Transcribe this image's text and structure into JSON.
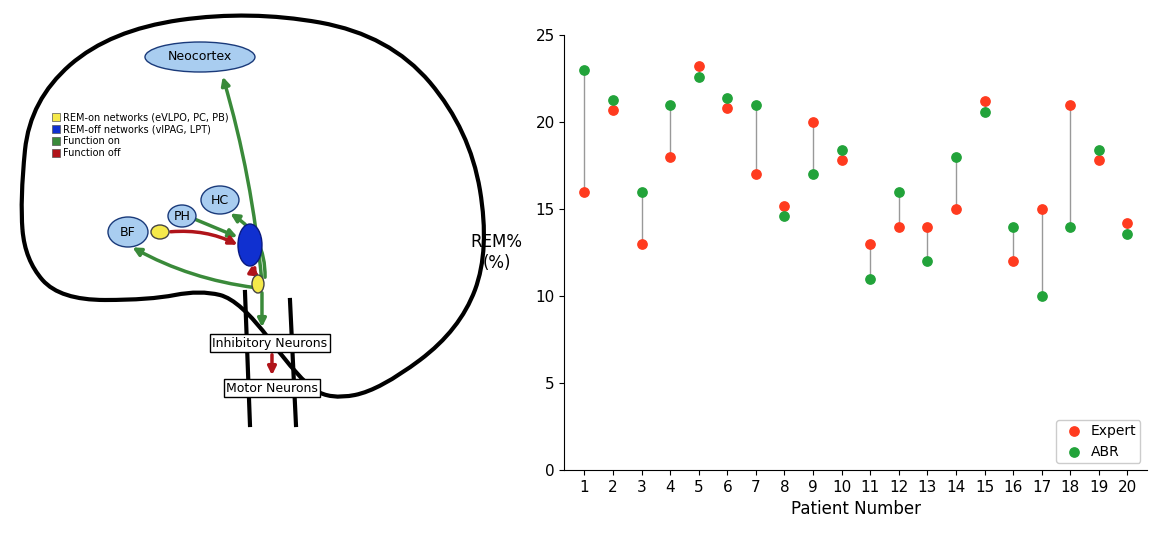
{
  "chart_data": {
    "type": "dumbbell",
    "categories": [
      "1",
      "2",
      "3",
      "4",
      "5",
      "6",
      "7",
      "8",
      "9",
      "10",
      "11",
      "12",
      "13",
      "14",
      "15",
      "16",
      "17",
      "18",
      "19",
      "20"
    ],
    "series": [
      {
        "name": "Expert",
        "color": "#ff3b1f",
        "marker": "circle",
        "values": [
          16,
          20.7,
          13,
          18,
          23.2,
          20.8,
          17,
          15.2,
          20,
          17.8,
          13,
          14,
          14,
          15,
          21.2,
          12,
          15,
          21,
          17.8,
          14.2
        ]
      },
      {
        "name": "ABR",
        "color": "#22a33a",
        "marker": "circle",
        "values": [
          23,
          21.3,
          16,
          21,
          22.6,
          21.4,
          21,
          14.6,
          17,
          18.4,
          11,
          16,
          12,
          18,
          20.6,
          14,
          10,
          14,
          18.4,
          13.6
        ]
      }
    ],
    "x_label": "Patient Number",
    "y_label": "REM%\n(%)",
    "ylim": [
      0,
      25
    ],
    "yticks": [
      0,
      5,
      10,
      15,
      20,
      25
    ],
    "legend": "lower right",
    "grid": false
  },
  "diagram": {
    "neocortex": "Neocortex",
    "legend": [
      {
        "label": "REM-on networks (eVLPO, PC, PB)",
        "color": "#f5e94a"
      },
      {
        "label": "REM-off networks (vlPAG, LPT)",
        "color": "#1030d0"
      },
      {
        "label": "Function on",
        "color": "#3a8a3a"
      },
      {
        "label": "Function off",
        "color": "#b0141a"
      }
    ],
    "nodes": [
      "BF",
      "PH",
      "HC"
    ],
    "boxes": [
      "Inhibitory Neurons",
      "Motor Neurons"
    ]
  }
}
